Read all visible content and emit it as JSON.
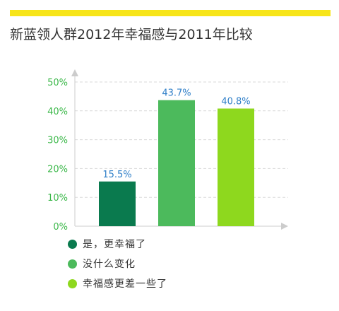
{
  "header": {
    "title": "新蓝领人群2012年幸福感与2011年比较",
    "accent_color": "#f7e51a"
  },
  "chart_data": {
    "type": "bar",
    "title": "新蓝领人群2012年幸福感与2011年比较",
    "xlabel": "",
    "ylabel": "",
    "ylim": [
      0,
      50
    ],
    "y_ticks": [
      "0%",
      "10%",
      "20%",
      "30%",
      "40%",
      "50%"
    ],
    "y_tick_values": [
      0,
      10,
      20,
      30,
      40,
      50
    ],
    "grid": true,
    "legend_position": "bottom-left",
    "categories": [
      "是，更幸福了",
      "没什么变化",
      "幸福感更差一些了"
    ],
    "values": [
      15.5,
      43.7,
      40.8
    ],
    "data_labels": [
      "15.5%",
      "43.7%",
      "40.8%"
    ],
    "colors": [
      "#0a7a4e",
      "#4cba5c",
      "#8ed81e"
    ],
    "tick_label_color": "#3cb84a",
    "data_label_color": "#2f7fc8"
  }
}
